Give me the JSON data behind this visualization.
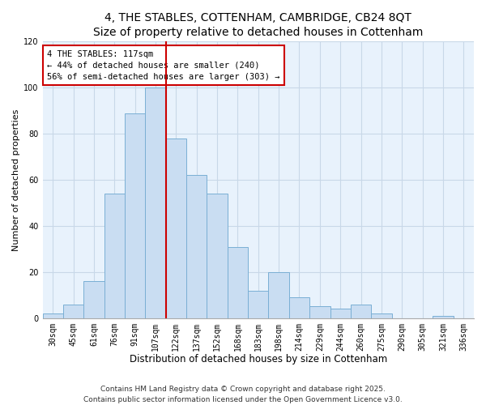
{
  "title": "4, THE STABLES, COTTENHAM, CAMBRIDGE, CB24 8QT",
  "subtitle": "Size of property relative to detached houses in Cottenham",
  "xlabel": "Distribution of detached houses by size in Cottenham",
  "ylabel": "Number of detached properties",
  "bar_labels": [
    "30sqm",
    "45sqm",
    "61sqm",
    "76sqm",
    "91sqm",
    "107sqm",
    "122sqm",
    "137sqm",
    "152sqm",
    "168sqm",
    "183sqm",
    "198sqm",
    "214sqm",
    "229sqm",
    "244sqm",
    "260sqm",
    "275sqm",
    "290sqm",
    "305sqm",
    "321sqm",
    "336sqm"
  ],
  "bar_values": [
    2,
    6,
    16,
    54,
    89,
    100,
    78,
    62,
    54,
    31,
    12,
    20,
    9,
    5,
    4,
    6,
    2,
    0,
    0,
    1,
    0
  ],
  "bar_color": "#c9ddf2",
  "bar_edge_color": "#7aafd4",
  "vline_x": 5.5,
  "vline_color": "#cc0000",
  "annotation_title": "4 THE STABLES: 117sqm",
  "annotation_line2": "← 44% of detached houses are smaller (240)",
  "annotation_line3": "56% of semi-detached houses are larger (303) →",
  "annotation_box_edge": "#cc0000",
  "ylim": [
    0,
    120
  ],
  "yticks": [
    0,
    20,
    40,
    60,
    80,
    100,
    120
  ],
  "bg_color": "#ffffff",
  "plot_bg_color": "#e8f2fc",
  "grid_color": "#c8d8e8",
  "footer_line1": "Contains HM Land Registry data © Crown copyright and database right 2025.",
  "footer_line2": "Contains public sector information licensed under the Open Government Licence v3.0.",
  "title_fontsize": 10,
  "xlabel_fontsize": 8.5,
  "ylabel_fontsize": 8,
  "tick_fontsize": 7,
  "annotation_fontsize": 7.5,
  "footer_fontsize": 6.5
}
